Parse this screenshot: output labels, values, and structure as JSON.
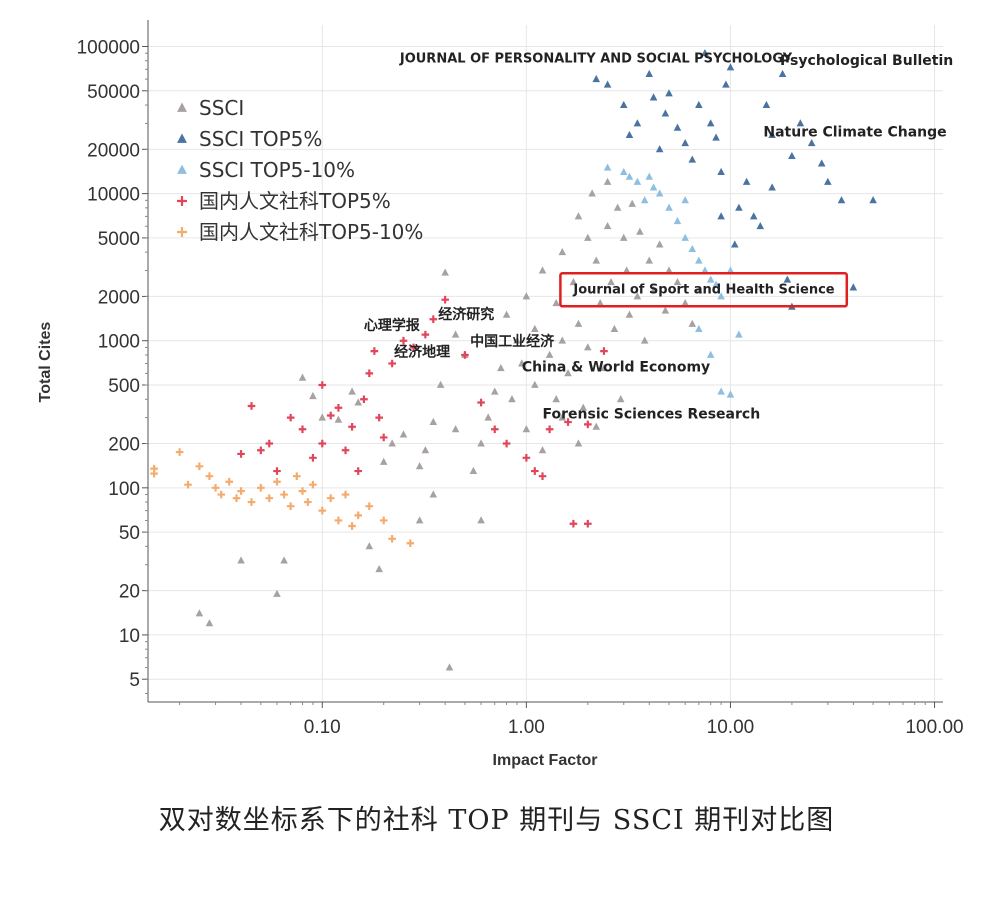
{
  "caption": "双对数坐标系下的社科 TOP 期刊与 SSCI 期刊对比图",
  "chart_data": {
    "type": "scatter",
    "xscale": "log",
    "yscale": "log",
    "xlabel": "Impact Factor",
    "ylabel": "Total Cites",
    "xlim": [
      0.014,
      110
    ],
    "ylim": [
      3.5,
      140000
    ],
    "grid": true,
    "legend_position": "top-left",
    "x_ticks": [
      {
        "value": 0.1,
        "label": "0.10"
      },
      {
        "value": 1,
        "label": "1.00"
      },
      {
        "value": 10,
        "label": "10.00"
      },
      {
        "value": 100,
        "label": "100.00"
      }
    ],
    "y_ticks": [
      {
        "value": 5,
        "label": "5"
      },
      {
        "value": 10,
        "label": "10"
      },
      {
        "value": 20,
        "label": "20"
      },
      {
        "value": 50,
        "label": "50"
      },
      {
        "value": 100,
        "label": "100"
      },
      {
        "value": 200,
        "label": "200"
      },
      {
        "value": 500,
        "label": "500"
      },
      {
        "value": 1000,
        "label": "1000"
      },
      {
        "value": 2000,
        "label": "2000"
      },
      {
        "value": 5000,
        "label": "5000"
      },
      {
        "value": 10000,
        "label": "10000"
      },
      {
        "value": 20000,
        "label": "20000"
      },
      {
        "value": 50000,
        "label": "50000"
      },
      {
        "value": 100000,
        "label": "100000"
      }
    ],
    "series": [
      {
        "name": "SSCI",
        "marker": "triangle",
        "color": "#a9a0a2",
        "points": [
          [
            0.025,
            14
          ],
          [
            0.028,
            12
          ],
          [
            0.04,
            32
          ],
          [
            0.06,
            19
          ],
          [
            0.065,
            32
          ],
          [
            0.08,
            560
          ],
          [
            0.09,
            420
          ],
          [
            0.1,
            300
          ],
          [
            0.12,
            290
          ],
          [
            0.14,
            450
          ],
          [
            0.15,
            380
          ],
          [
            0.17,
            40
          ],
          [
            0.19,
            28
          ],
          [
            0.2,
            150
          ],
          [
            0.22,
            200
          ],
          [
            0.25,
            230
          ],
          [
            0.3,
            140
          ],
          [
            0.32,
            180
          ],
          [
            0.35,
            280
          ],
          [
            0.38,
            500
          ],
          [
            0.4,
            2900
          ],
          [
            0.42,
            6
          ],
          [
            0.45,
            1100
          ],
          [
            0.5,
            800
          ],
          [
            0.55,
            130
          ],
          [
            0.6,
            60
          ],
          [
            0.65,
            300
          ],
          [
            0.7,
            450
          ],
          [
            0.75,
            650
          ],
          [
            0.8,
            1500
          ],
          [
            0.85,
            400
          ],
          [
            0.9,
            1000
          ],
          [
            0.95,
            700
          ],
          [
            1.0,
            2000
          ],
          [
            1.0,
            250
          ],
          [
            1.1,
            1200
          ],
          [
            1.1,
            500
          ],
          [
            1.2,
            3000
          ],
          [
            1.2,
            180
          ],
          [
            1.3,
            800
          ],
          [
            1.4,
            1800
          ],
          [
            1.4,
            400
          ],
          [
            1.5,
            4000
          ],
          [
            1.5,
            1000
          ],
          [
            1.6,
            600
          ],
          [
            1.7,
            2500
          ],
          [
            1.8,
            7000
          ],
          [
            1.8,
            1300
          ],
          [
            1.9,
            350
          ],
          [
            2.0,
            5000
          ],
          [
            2.0,
            900
          ],
          [
            2.1,
            10000
          ],
          [
            2.2,
            3500
          ],
          [
            2.3,
            1800
          ],
          [
            2.4,
            650
          ],
          [
            2.5,
            12000
          ],
          [
            2.5,
            6000
          ],
          [
            2.6,
            2500
          ],
          [
            2.7,
            1200
          ],
          [
            2.8,
            8000
          ],
          [
            2.9,
            400
          ],
          [
            3.0,
            5000
          ],
          [
            3.1,
            3000
          ],
          [
            3.2,
            1500
          ],
          [
            3.3,
            8500
          ],
          [
            3.5,
            2000
          ],
          [
            3.6,
            5500
          ],
          [
            3.8,
            1000
          ],
          [
            4.0,
            3500
          ],
          [
            4.2,
            2200
          ],
          [
            4.5,
            4500
          ],
          [
            4.8,
            1600
          ],
          [
            5.0,
            3000
          ],
          [
            5.5,
            2500
          ],
          [
            6.0,
            1800
          ],
          [
            6.5,
            1300
          ],
          [
            7.0,
            2200
          ],
          [
            2.2,
            260
          ],
          [
            1.8,
            200
          ],
          [
            1.5,
            300
          ],
          [
            0.6,
            200
          ],
          [
            0.45,
            250
          ],
          [
            0.35,
            90
          ],
          [
            0.3,
            60
          ]
        ]
      },
      {
        "name": "SSCI TOP5%",
        "marker": "triangle",
        "color": "#4a73a0",
        "points": [
          [
            2.2,
            60000
          ],
          [
            2.5,
            55000
          ],
          [
            3.0,
            40000
          ],
          [
            3.2,
            25000
          ],
          [
            3.5,
            30000
          ],
          [
            4.0,
            65000
          ],
          [
            4.2,
            45000
          ],
          [
            4.5,
            20000
          ],
          [
            4.8,
            35000
          ],
          [
            5.0,
            48000
          ],
          [
            5.5,
            28000
          ],
          [
            6.0,
            22000
          ],
          [
            6.5,
            17000
          ],
          [
            7.0,
            40000
          ],
          [
            7.5,
            90000
          ],
          [
            8.0,
            30000
          ],
          [
            8.5,
            24000
          ],
          [
            9.0,
            14000
          ],
          [
            9.5,
            55000
          ],
          [
            10.0,
            72000
          ],
          [
            11.0,
            8000
          ],
          [
            12.0,
            12000
          ],
          [
            14.0,
            6000
          ],
          [
            15.0,
            40000
          ],
          [
            16.0,
            25000
          ],
          [
            18.0,
            65000
          ],
          [
            20.0,
            18000
          ],
          [
            22.0,
            30000
          ],
          [
            25.0,
            22000
          ],
          [
            28.0,
            16000
          ],
          [
            30.0,
            12000
          ],
          [
            35.0,
            9000
          ],
          [
            40.0,
            2300
          ],
          [
            50.0,
            9000
          ],
          [
            20.0,
            1700
          ],
          [
            19.0,
            2600
          ],
          [
            16.0,
            11000
          ],
          [
            13.0,
            7000
          ],
          [
            10.5,
            4500
          ],
          [
            9.0,
            7000
          ]
        ]
      },
      {
        "name": "SSCI TOP5-10%",
        "marker": "triangle",
        "color": "#8fbfdf",
        "points": [
          [
            2.5,
            15000
          ],
          [
            3.0,
            14000
          ],
          [
            3.5,
            12000
          ],
          [
            3.8,
            9000
          ],
          [
            4.0,
            13000
          ],
          [
            4.5,
            10000
          ],
          [
            5.0,
            8000
          ],
          [
            5.5,
            6500
          ],
          [
            6.0,
            5000
          ],
          [
            6.5,
            4200
          ],
          [
            7.0,
            3500
          ],
          [
            7.5,
            3000
          ],
          [
            8.0,
            2600
          ],
          [
            8.5,
            2400
          ],
          [
            9.0,
            2000
          ],
          [
            10.0,
            3000
          ],
          [
            7.0,
            1200
          ],
          [
            8.0,
            800
          ],
          [
            9.0,
            450
          ],
          [
            10.0,
            430
          ],
          [
            11.0,
            1100
          ],
          [
            6.0,
            9000
          ],
          [
            4.2,
            11000
          ],
          [
            3.2,
            13000
          ]
        ]
      },
      {
        "name": "国内人文社科TOP5%",
        "marker": "plus",
        "color": "#e0475a",
        "points": [
          [
            0.04,
            170
          ],
          [
            0.045,
            360
          ],
          [
            0.05,
            180
          ],
          [
            0.055,
            200
          ],
          [
            0.06,
            130
          ],
          [
            0.07,
            300
          ],
          [
            0.08,
            250
          ],
          [
            0.09,
            160
          ],
          [
            0.1,
            500
          ],
          [
            0.1,
            200
          ],
          [
            0.11,
            310
          ],
          [
            0.12,
            350
          ],
          [
            0.13,
            180
          ],
          [
            0.14,
            260
          ],
          [
            0.15,
            130
          ],
          [
            0.16,
            400
          ],
          [
            0.17,
            600
          ],
          [
            0.18,
            850
          ],
          [
            0.19,
            300
          ],
          [
            0.2,
            220
          ],
          [
            0.22,
            700
          ],
          [
            0.25,
            1000
          ],
          [
            0.28,
            900
          ],
          [
            0.32,
            1100
          ],
          [
            0.35,
            1400
          ],
          [
            0.4,
            1900
          ],
          [
            0.5,
            800
          ],
          [
            0.6,
            380
          ],
          [
            0.7,
            250
          ],
          [
            0.8,
            200
          ],
          [
            1.0,
            160
          ],
          [
            1.1,
            130
          ],
          [
            1.2,
            120
          ],
          [
            1.7,
            57
          ],
          [
            2.0,
            57
          ],
          [
            1.3,
            250
          ],
          [
            1.6,
            280
          ],
          [
            2.0,
            270
          ],
          [
            2.4,
            850
          ]
        ]
      },
      {
        "name": "国内人文社科TOP5-10%",
        "marker": "plus",
        "color": "#f4ab6e",
        "points": [
          [
            0.015,
            135
          ],
          [
            0.015,
            125
          ],
          [
            0.02,
            175
          ],
          [
            0.022,
            105
          ],
          [
            0.025,
            140
          ],
          [
            0.028,
            120
          ],
          [
            0.03,
            100
          ],
          [
            0.032,
            90
          ],
          [
            0.035,
            110
          ],
          [
            0.038,
            85
          ],
          [
            0.04,
            95
          ],
          [
            0.045,
            80
          ],
          [
            0.05,
            100
          ],
          [
            0.055,
            85
          ],
          [
            0.06,
            110
          ],
          [
            0.065,
            90
          ],
          [
            0.07,
            75
          ],
          [
            0.075,
            120
          ],
          [
            0.08,
            95
          ],
          [
            0.085,
            80
          ],
          [
            0.09,
            105
          ],
          [
            0.1,
            70
          ],
          [
            0.11,
            85
          ],
          [
            0.12,
            60
          ],
          [
            0.13,
            90
          ],
          [
            0.14,
            55
          ],
          [
            0.15,
            65
          ],
          [
            0.17,
            75
          ],
          [
            0.2,
            60
          ],
          [
            0.22,
            45
          ],
          [
            0.27,
            42
          ]
        ]
      }
    ],
    "annotations": [
      {
        "text": "JOURNAL OF PERSONALITY AND SOCIAL PSYCHOLOGY",
        "x": 0.24,
        "y": 78000
      },
      {
        "text": "Psychological  Bulletin",
        "x": 17.5,
        "y": 75000
      },
      {
        "text": "Nature Climate Change",
        "x": 14.5,
        "y": 24500
      },
      {
        "text": "Journal of Sport and Health Science",
        "x": 1.7,
        "y": 2100
      },
      {
        "text": "心理学报",
        "x": 0.16,
        "y": 1180
      },
      {
        "text": "经济研究",
        "x": 0.37,
        "y": 1400
      },
      {
        "text": "经济地理",
        "x": 0.225,
        "y": 780
      },
      {
        "text": "中国工业经济",
        "x": 0.53,
        "y": 920
      },
      {
        "text": "China & World Economy",
        "x": 0.95,
        "y": 620
      },
      {
        "text": "Forensic Sciences Research",
        "x": 1.2,
        "y": 295
      }
    ],
    "highlight": {
      "label": "Journal of Sport and Health Science",
      "color": "#e02020"
    }
  }
}
